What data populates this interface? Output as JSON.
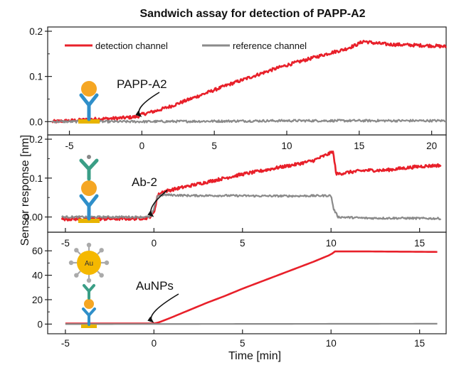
{
  "chart_data": {
    "type": "line",
    "title": "Sandwich assay for detection of PAPP-A2",
    "xlabel": "Time [min]",
    "ylabel": "Sensor response [nm]",
    "legend": {
      "placement": "top",
      "entries": [
        "detection channel",
        "reference channel"
      ]
    },
    "colors": {
      "detection": "#e8202a",
      "reference": "#8a8a8a",
      "antibody": "#2f8fc9",
      "antibody2": "#3a9e86",
      "protein": "#f5a623",
      "substrate": "#e8b400",
      "gold": "#f5b800",
      "gold_ring": "#aaaaaa"
    },
    "panels": [
      {
        "id": "papp-a2",
        "annotation": "PAPP-A2",
        "arrow_at": [
          0,
          0.01
        ],
        "xlim": [
          -6.5,
          21
        ],
        "ylim": [
          -0.02,
          0.2
        ],
        "xticks": [
          -5,
          0,
          5,
          10,
          15,
          20
        ],
        "yticks": [
          0.0,
          0.1,
          0.2
        ],
        "ytick_labels": [
          "0.0",
          "0.1",
          "0.2"
        ],
        "xtick_labels": [
          "-5",
          "0",
          "5",
          "10",
          "15",
          "20"
        ],
        "icon": "papp-a2-capture-icon",
        "series": [
          {
            "name": "detection channel",
            "key": "detection",
            "noise": 0.0035,
            "x": [
              -6.2,
              -5,
              -4,
              -3,
              -2,
              -1,
              -0.3,
              0,
              1,
              2,
              3,
              4,
              5,
              6,
              7,
              8,
              9,
              10,
              11,
              12,
              13,
              14,
              14.8,
              15.3,
              16,
              17,
              18,
              19,
              20,
              21
            ],
            "y": [
              0.0,
              0.002,
              0.004,
              0.006,
              0.007,
              0.009,
              0.011,
              0.016,
              0.024,
              0.034,
              0.046,
              0.058,
              0.07,
              0.082,
              0.093,
              0.104,
              0.115,
              0.125,
              0.134,
              0.143,
              0.152,
              0.16,
              0.17,
              0.178,
              0.174,
              0.171,
              0.17,
              0.169,
              0.168,
              0.166
            ]
          },
          {
            "name": "reference channel",
            "key": "reference",
            "noise": 0.0025,
            "x": [
              -6.2,
              0,
              5,
              10,
              15,
              21
            ],
            "y": [
              0.0,
              0.0,
              0.001,
              0.002,
              0.002,
              0.002
            ]
          }
        ]
      },
      {
        "id": "ab-2",
        "annotation": "Ab-2",
        "arrow_at": [
          0,
          0.0
        ],
        "xlim": [
          -6,
          16.5
        ],
        "ylim": [
          -0.03,
          0.2
        ],
        "xticks": [
          -5,
          0,
          5,
          10,
          15
        ],
        "yticks": [
          0.0,
          0.1,
          0.2
        ],
        "ytick_labels": [
          "0.00",
          "0.1",
          "0.2"
        ],
        "xtick_labels": [
          "-5",
          "0",
          "5",
          "10",
          "15"
        ],
        "icon": "ab2-sandwich-icon",
        "series": [
          {
            "name": "detection channel",
            "key": "detection",
            "noise": 0.004,
            "x": [
              -5.2,
              -3,
              -1,
              -0.3,
              0,
              0.2,
              0.5,
              1,
              2,
              3,
              4,
              5,
              6,
              7,
              8,
              9,
              10,
              10.1,
              10.3,
              11,
              12,
              13,
              14,
              15,
              16.2
            ],
            "y": [
              -0.005,
              -0.005,
              -0.004,
              -0.002,
              0.01,
              0.055,
              0.065,
              0.07,
              0.08,
              0.09,
              0.1,
              0.11,
              0.118,
              0.127,
              0.135,
              0.145,
              0.165,
              0.17,
              0.11,
              0.115,
              0.12,
              0.12,
              0.125,
              0.13,
              0.133
            ]
          },
          {
            "name": "reference channel",
            "key": "reference",
            "noise": 0.0025,
            "x": [
              -5.2,
              -1,
              -0.2,
              0,
              0.2,
              0.6,
              2,
              4,
              6,
              8,
              10,
              10.15,
              10.4,
              12,
              14,
              16.2
            ],
            "y": [
              0.0,
              0.0,
              0.0,
              0.02,
              0.055,
              0.057,
              0.055,
              0.055,
              0.054,
              0.054,
              0.055,
              0.02,
              0.0,
              -0.003,
              -0.003,
              -0.004
            ]
          }
        ]
      },
      {
        "id": "aunps",
        "annotation": "AuNPs",
        "arrow_at": [
          0,
          1
        ],
        "xlim": [
          -6,
          16.5
        ],
        "ylim": [
          -5,
          70
        ],
        "xticks": [
          -5,
          0,
          5,
          10,
          15
        ],
        "yticks": [
          0,
          20,
          40,
          60
        ],
        "ytick_labels": [
          "0",
          "20",
          "40",
          "60"
        ],
        "xtick_labels": [
          "-5",
          "0",
          "5",
          "10",
          "15"
        ],
        "icon": "aunp-sandwich-icon",
        "icon_text": "Au",
        "series": [
          {
            "name": "detection channel",
            "key": "detection",
            "noise": 0,
            "x": [
              -5,
              0,
              0.3,
              1,
              2,
              3,
              4,
              5,
              6,
              7,
              8,
              9,
              10,
              10.2,
              12,
              14,
              16
            ],
            "y": [
              0.5,
              0.5,
              1.5,
              5.5,
              11.5,
              17.5,
              23,
              29,
              34.5,
              40,
              45.5,
              51,
              57,
              59.5,
              59.5,
              59.3,
              59.1
            ]
          },
          {
            "name": "reference channel",
            "key": "reference",
            "noise": 0,
            "x": [
              -5,
              16
            ],
            "y": [
              0.0,
              0.3
            ]
          }
        ]
      }
    ]
  }
}
